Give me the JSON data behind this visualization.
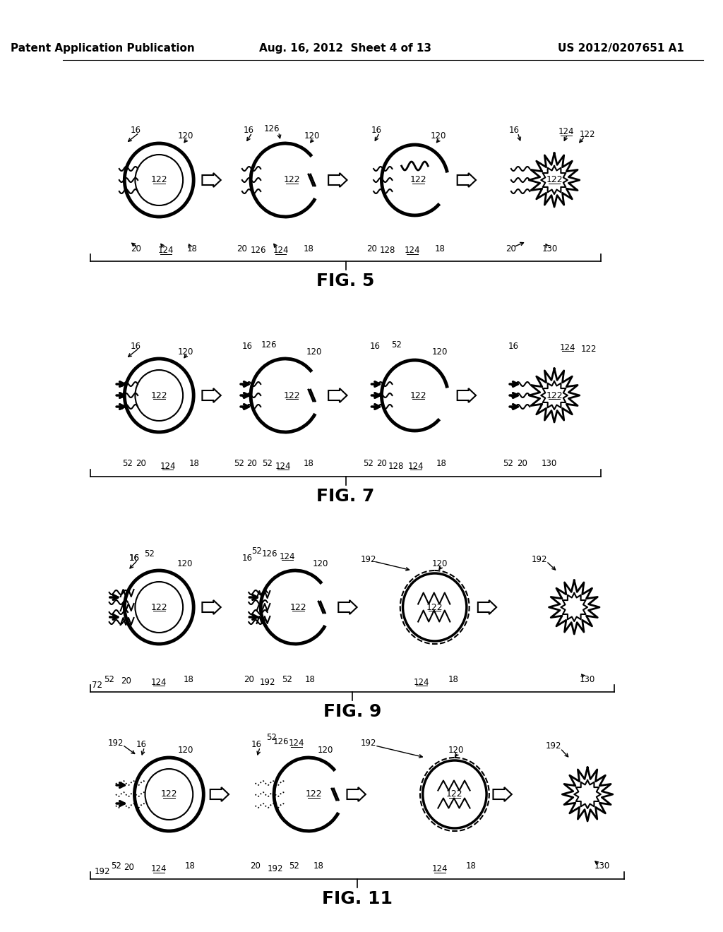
{
  "title_left": "Patent Application Publication",
  "title_center": "Aug. 16, 2012  Sheet 4 of 13",
  "title_right": "US 2012/0207651 A1",
  "fig_labels": [
    "FIG. 5",
    "FIG. 7",
    "FIG. 9",
    "FIG. 11"
  ],
  "background_color": "#ffffff",
  "text_color": "#000000",
  "header_font_size": 11,
  "fig_label_font_size": 18,
  "annotation_font_size": 8.5,
  "line_width": 1.5,
  "arrow_color": "#000000"
}
